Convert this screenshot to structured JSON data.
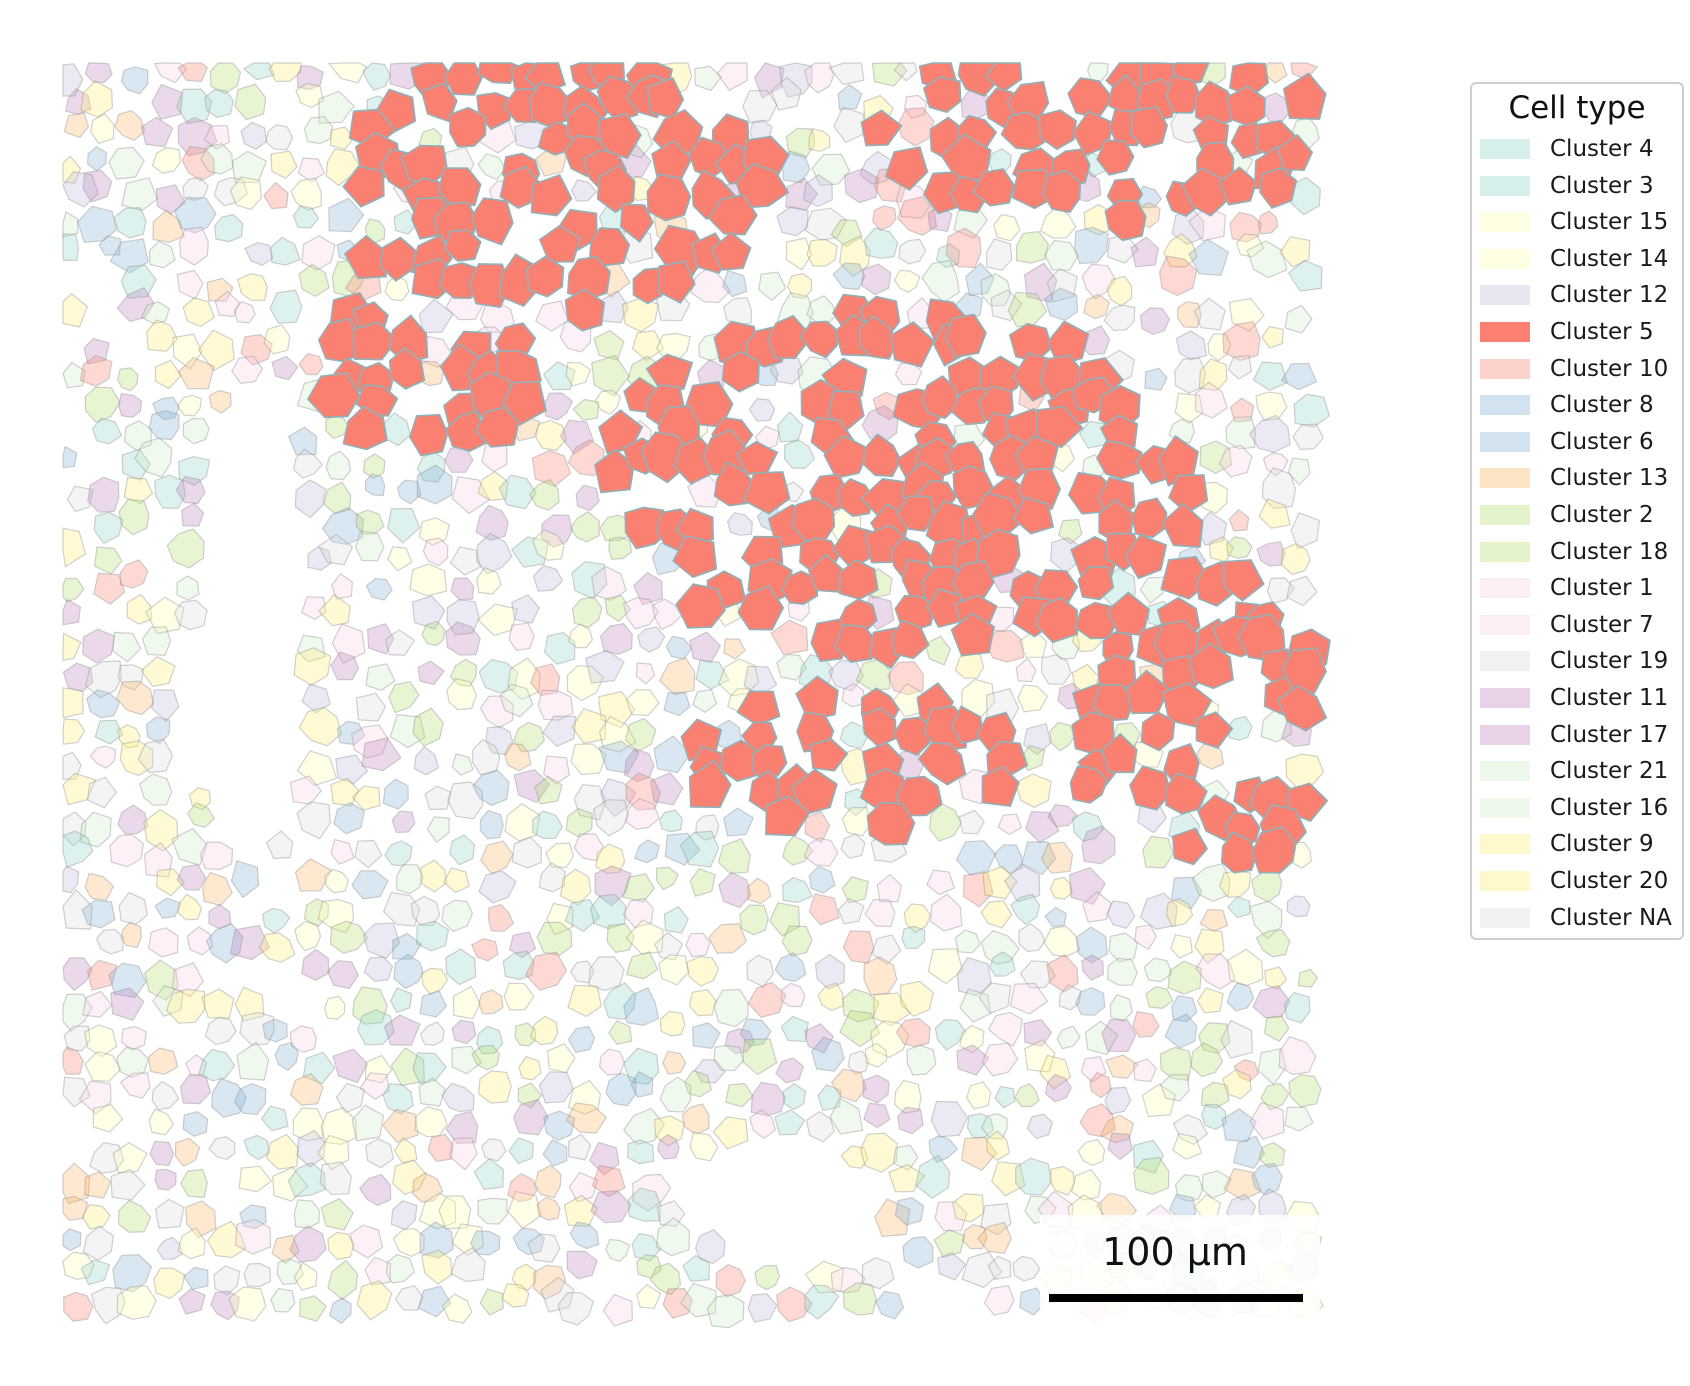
{
  "legend": {
    "title": "Cell type",
    "items": [
      {
        "label": "Cluster 4",
        "color": "#8dd3c7",
        "strong": false
      },
      {
        "label": "Cluster 3",
        "color": "#8dd3c7",
        "strong": false
      },
      {
        "label": "Cluster 15",
        "color": "#ffffb3",
        "strong": false
      },
      {
        "label": "Cluster 14",
        "color": "#ffffb3",
        "strong": false
      },
      {
        "label": "Cluster 12",
        "color": "#bebada",
        "strong": false
      },
      {
        "label": "Cluster 5",
        "color": "#fb8072",
        "strong": true
      },
      {
        "label": "Cluster 10",
        "color": "#fb8072",
        "strong": false
      },
      {
        "label": "Cluster 8",
        "color": "#80b1d3",
        "strong": false
      },
      {
        "label": "Cluster 6",
        "color": "#80b1d3",
        "strong": false
      },
      {
        "label": "Cluster 13",
        "color": "#fdb462",
        "strong": false
      },
      {
        "label": "Cluster 2",
        "color": "#b3de69",
        "strong": false
      },
      {
        "label": "Cluster 18",
        "color": "#b3de69",
        "strong": false
      },
      {
        "label": "Cluster 1",
        "color": "#fccde5",
        "strong": false
      },
      {
        "label": "Cluster 7",
        "color": "#fccde5",
        "strong": false
      },
      {
        "label": "Cluster 19",
        "color": "#d9d9d9",
        "strong": false
      },
      {
        "label": "Cluster 11",
        "color": "#bc80bd",
        "strong": false
      },
      {
        "label": "Cluster 17",
        "color": "#bc80bd",
        "strong": false
      },
      {
        "label": "Cluster 21",
        "color": "#ccebc5",
        "strong": false
      },
      {
        "label": "Cluster 16",
        "color": "#ccebc5",
        "strong": false
      },
      {
        "label": "Cluster 9",
        "color": "#ffed6f",
        "strong": false
      },
      {
        "label": "Cluster 20",
        "color": "#ffed6f",
        "strong": false
      },
      {
        "label": "Cluster NA",
        "color": "#d9d9d9",
        "strong": false
      }
    ]
  },
  "scalebar": {
    "label": "100 µm"
  },
  "highlight": {
    "fill": "#fa8072",
    "edge": "#8fb1b8"
  },
  "background_cells": {
    "edge": "#9a9a9a",
    "opacity": 0.3
  }
}
